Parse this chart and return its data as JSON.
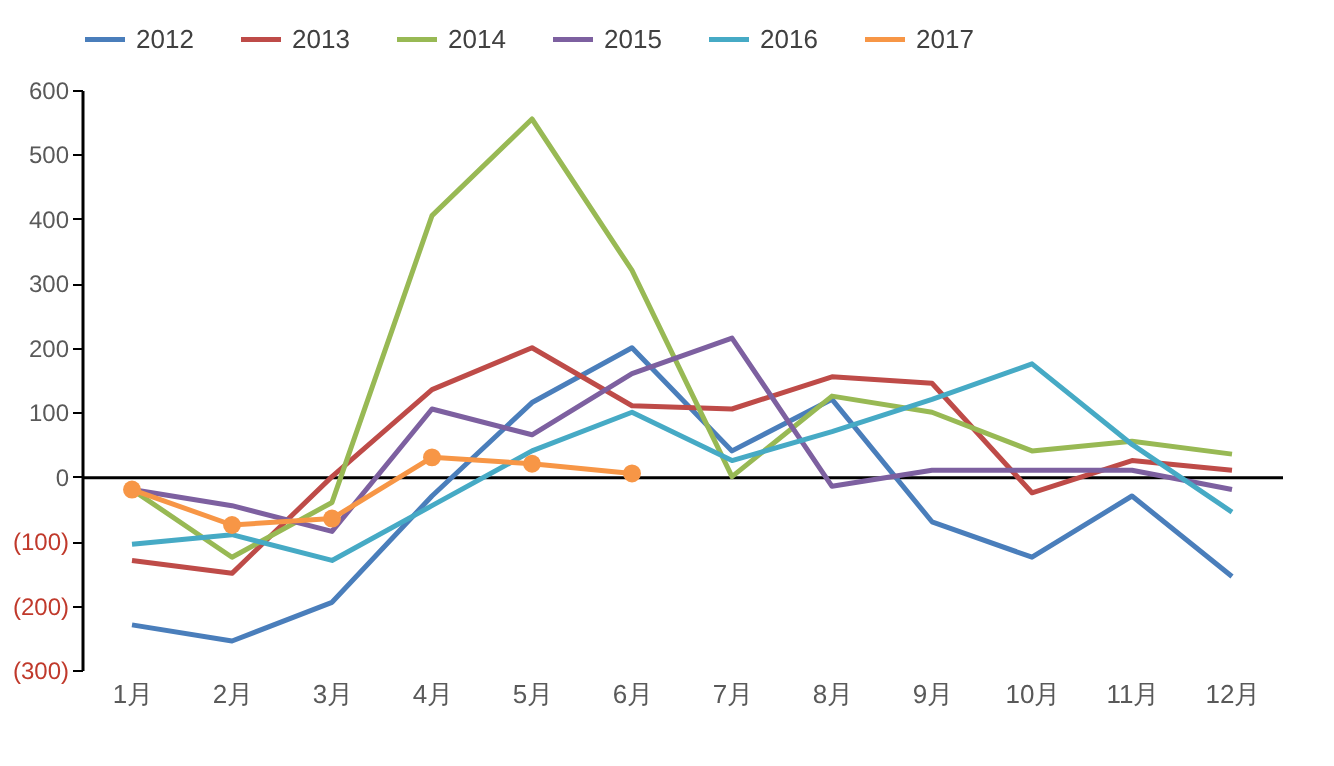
{
  "chart_data": {
    "type": "line",
    "categories": [
      "1月",
      "2月",
      "3月",
      "4月",
      "5月",
      "6月",
      "7月",
      "8月",
      "9月",
      "10月",
      "11月",
      "12月"
    ],
    "ylim": [
      -300,
      600
    ],
    "yticks": [
      {
        "value": -300,
        "label": "(300)"
      },
      {
        "value": -200,
        "label": "(200)"
      },
      {
        "value": -100,
        "label": "(100)"
      },
      0,
      100,
      200,
      300,
      400,
      500,
      600
    ],
    "legend": "top",
    "series": [
      {
        "name": "2012",
        "color": "#4a7ebb",
        "marker": "none",
        "values": [
          -230,
          -255,
          -195,
          -30,
          115,
          200,
          40,
          120,
          -70,
          -125,
          -30,
          -155
        ]
      },
      {
        "name": "2013",
        "color": "#be4b48",
        "marker": "none",
        "values": [
          -130,
          -150,
          0,
          135,
          200,
          110,
          105,
          155,
          145,
          -25,
          25,
          10
        ]
      },
      {
        "name": "2014",
        "color": "#98b954",
        "marker": "none",
        "values": [
          -20,
          -125,
          -40,
          405,
          555,
          320,
          0,
          125,
          100,
          40,
          55,
          35
        ]
      },
      {
        "name": "2015",
        "color": "#7d60a0",
        "marker": "none",
        "values": [
          -20,
          -45,
          -85,
          105,
          65,
          160,
          215,
          -15,
          10,
          10,
          10,
          -20
        ]
      },
      {
        "name": "2016",
        "color": "#46aac5",
        "marker": "none",
        "values": [
          -105,
          -90,
          -130,
          -45,
          40,
          100,
          25,
          70,
          120,
          175,
          50,
          -55
        ]
      },
      {
        "name": "2017",
        "color": "#f79646",
        "marker": "circle",
        "values": [
          -20,
          -75,
          -65,
          30,
          20,
          5,
          null,
          null,
          null,
          null,
          null,
          null
        ]
      }
    ]
  }
}
